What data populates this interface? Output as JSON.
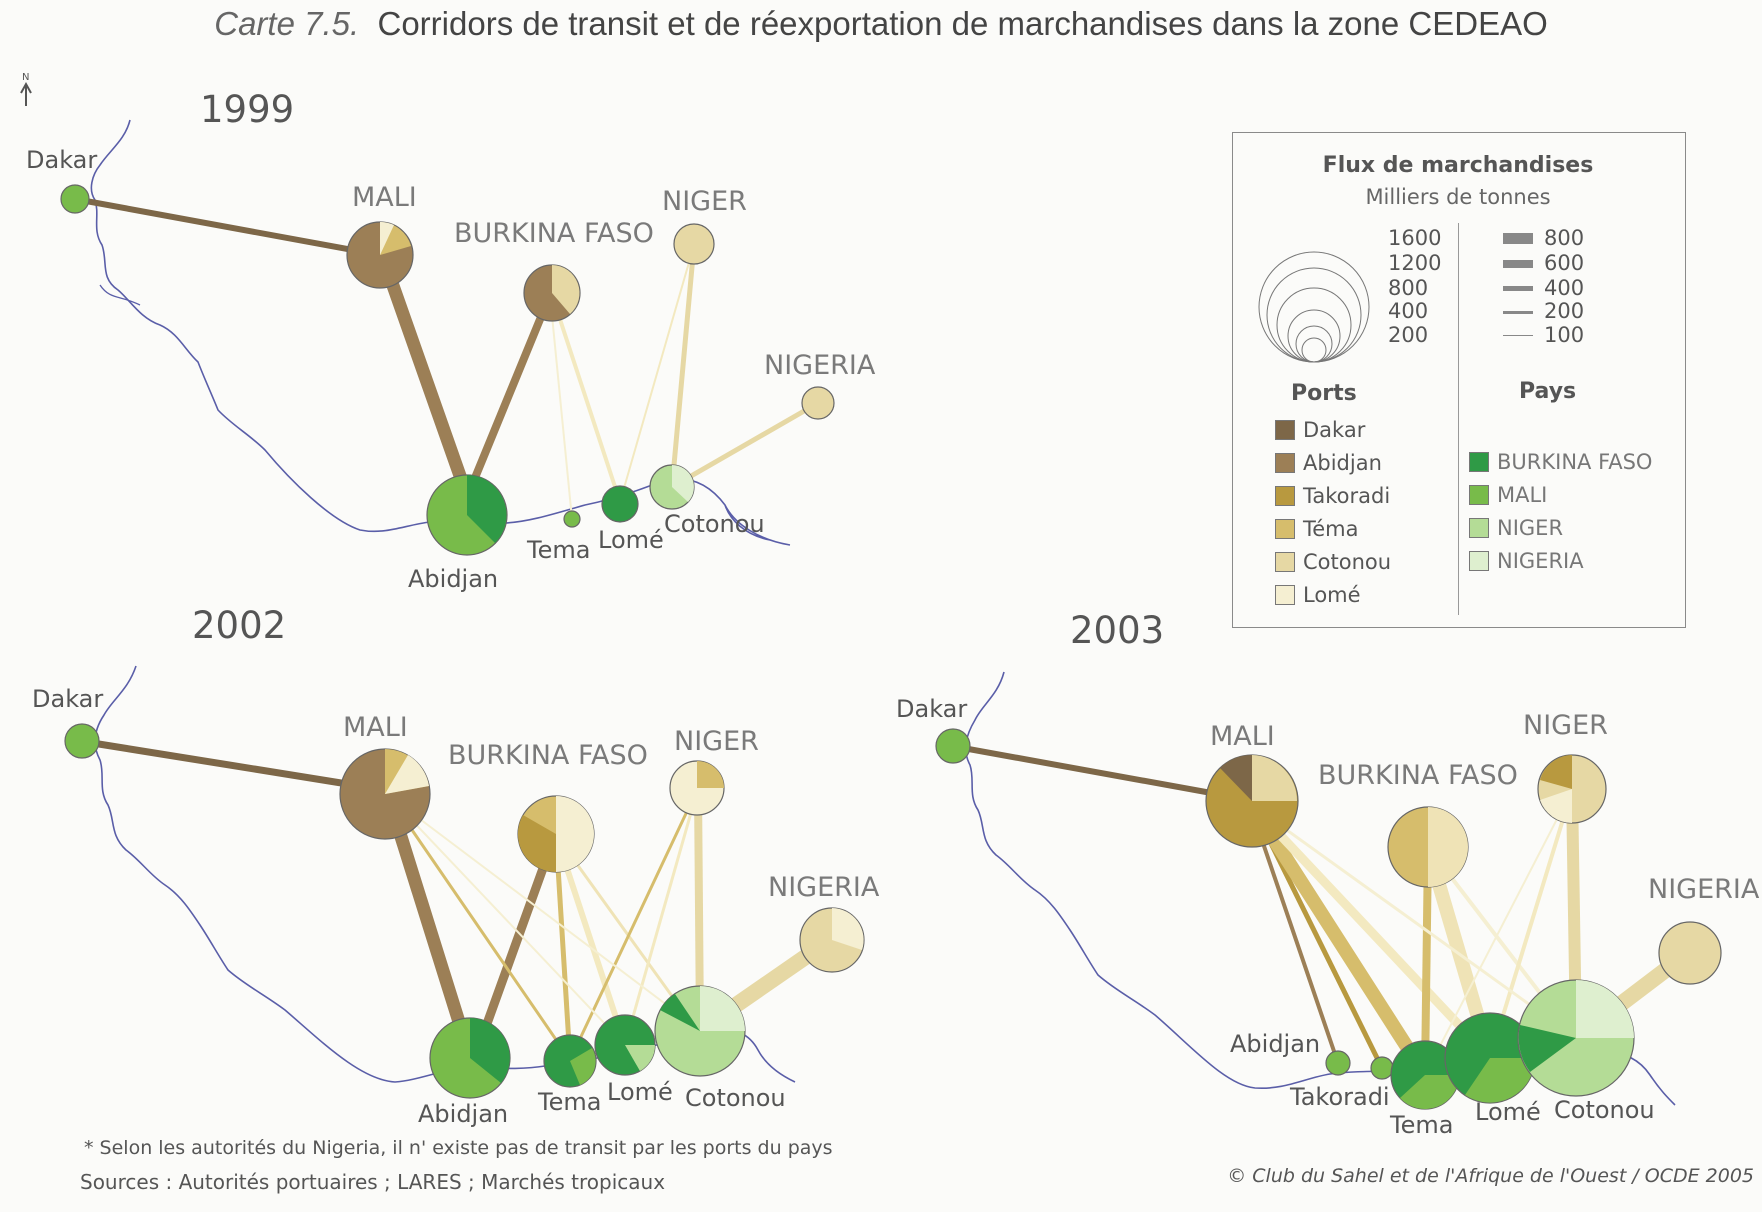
{
  "title": {
    "lead": "Carte 7.5.",
    "main": "Corridors de transit et de réexportation de marchandises dans la zone CEDEAO"
  },
  "north": "N",
  "maps": [
    {
      "year": "1999",
      "labels": {
        "dakar": "Dakar",
        "mali": "MALI",
        "burkina": "BURKINA FASO",
        "niger": "NIGER",
        "nigeria": "NIGERIA",
        "abidjan": "Abidjan",
        "tema": "Tema",
        "lome": "Lomé",
        "cotonou": "Cotonou"
      }
    },
    {
      "year": "2002",
      "labels": {
        "dakar": "Dakar",
        "mali": "MALI",
        "burkina": "BURKINA FASO",
        "niger": "NIGER",
        "nigeria": "NIGERIA",
        "abidjan": "Abidjan",
        "tema": "Tema",
        "lome": "Lomé",
        "cotonou": "Cotonou"
      }
    },
    {
      "year": "2003",
      "labels": {
        "dakar": "Dakar",
        "mali": "MALI",
        "burkina": "BURKINA FASO",
        "niger": "NIGER",
        "nigeria": "NIGERIA",
        "abidjan": "Abidjan",
        "takoradi": "Takoradi",
        "tema": "Tema",
        "lome": "Lomé",
        "cotonou": "Cotonou"
      }
    }
  ],
  "legend": {
    "title": "Flux de marchandises",
    "subtitle": "Milliers de tonnes",
    "circle_values": [
      "1600",
      "1200",
      "800",
      "400",
      "200"
    ],
    "flow_values": [
      "800",
      "600",
      "400",
      "200",
      "100"
    ],
    "ports_heading": "Ports",
    "ports": [
      {
        "name": "Dakar",
        "color": "#7d6748"
      },
      {
        "name": "Abidjan",
        "color": "#9c7f56"
      },
      {
        "name": "Takoradi",
        "color": "#b8993f"
      },
      {
        "name": "Téma",
        "color": "#d6bd6c"
      },
      {
        "name": "Cotonou",
        "color": "#e6d8a4"
      },
      {
        "name": "Lomé",
        "color": "#f5efd2"
      }
    ],
    "pays_heading": "Pays",
    "pays": [
      {
        "name": "BURKINA FASO",
        "color": "#2f9a46"
      },
      {
        "name": "MALI",
        "color": "#78bb4a"
      },
      {
        "name": "NIGER",
        "color": "#b4dc96"
      },
      {
        "name": "NIGERIA",
        "color": "#deefcf"
      }
    ]
  },
  "footnote": "* Selon les autorités du Nigeria, il n' existe pas de transit par les ports du pays",
  "sources": "Sources : Autorités portuaires ; LARES ; Marchés tropicaux",
  "copyright": "© Club du Sahel et de l'Afrique de l'Ouest / OCDE 2005"
}
